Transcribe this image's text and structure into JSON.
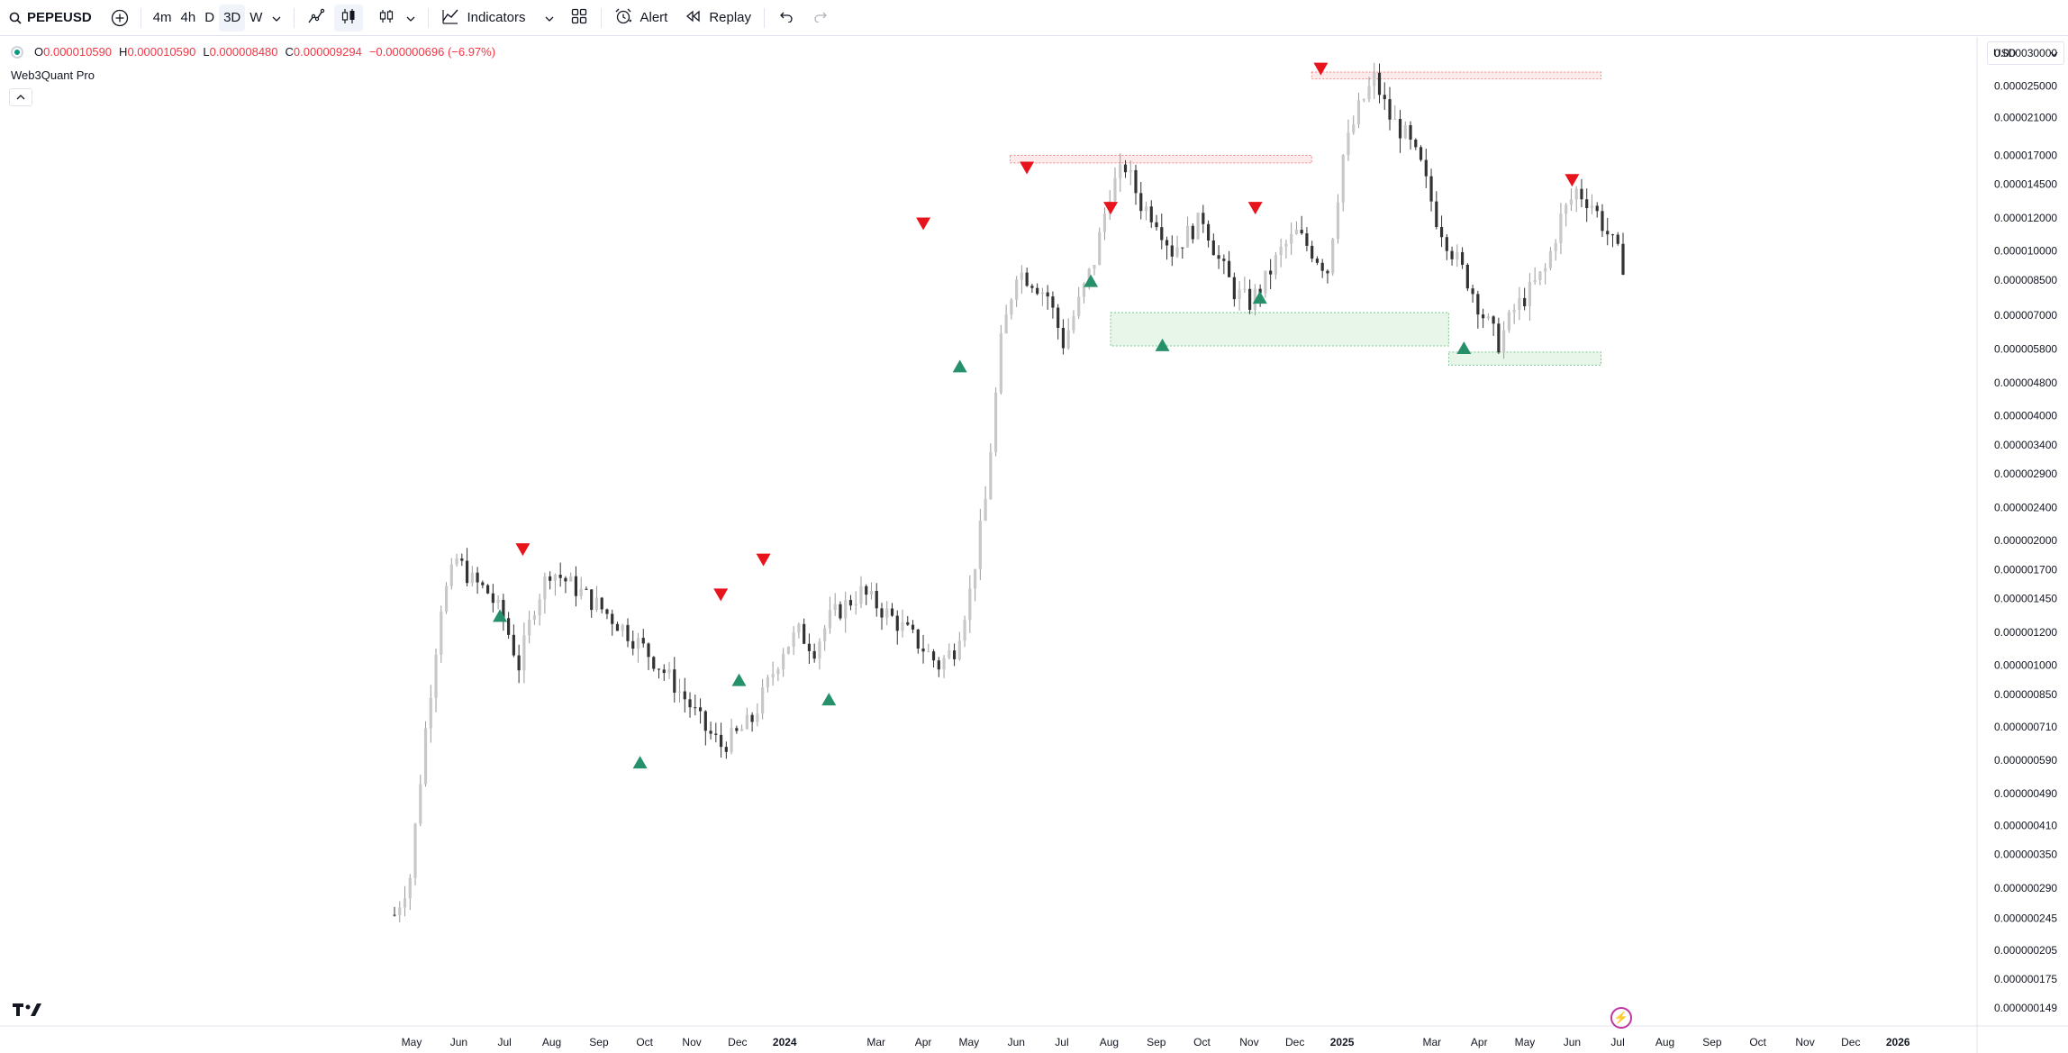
{
  "toolbar": {
    "symbol": "PEPEUSD",
    "intervals": [
      "4m",
      "4h",
      "D",
      "3D",
      "W"
    ],
    "active_interval": "3D",
    "indicators_label": "Indicators",
    "alert_label": "Alert",
    "replay_label": "Replay"
  },
  "legend": {
    "o_label": "O",
    "o_value": "0.000010590",
    "h_label": "H",
    "h_value": "0.000010590",
    "l_label": "L",
    "l_value": "0.000008480",
    "c_label": "C",
    "c_value": "0.000009294",
    "change": "−0.000000696 (−6.97%)",
    "indicator_name": "Web3Quant Pro"
  },
  "currency": "USD",
  "colors": {
    "bull_signal": "#26906b",
    "bear_signal": "#e8141c",
    "bull_zone": "#e8f6ea",
    "bear_zone": "#fdeaea",
    "candle": "#9a9a9a",
    "candle_dark": "#333333"
  },
  "chart_data": {
    "type": "candlestick",
    "price_scale": [
      "0.000030000",
      "0.000025000",
      "0.000021000",
      "0.000017000",
      "0.000014500",
      "0.000012000",
      "0.000010000",
      "0.000008500",
      "0.000007000",
      "0.000005800",
      "0.000004800",
      "0.000004000",
      "0.000003400",
      "0.000002900",
      "0.000002400",
      "0.000002000",
      "0.000001700",
      "0.000001450",
      "0.000001200",
      "0.000001000",
      "0.000000850",
      "0.000000710",
      "0.000000590",
      "0.000000490",
      "0.000000410",
      "0.000000350",
      "0.000000290",
      "0.000000245",
      "0.000000205",
      "0.000000175",
      "0.000000149"
    ],
    "time_scale": [
      "May",
      "Jun",
      "Jul",
      "Aug",
      "Sep",
      "Oct",
      "Nov",
      "Dec",
      "2024",
      "Mar",
      "Apr",
      "May",
      "Jun",
      "Jul",
      "Aug",
      "Sep",
      "Oct",
      "Nov",
      "Dec",
      "2025",
      "Mar",
      "Apr",
      "May",
      "Jun",
      "Jul",
      "Aug",
      "Sep",
      "Oct",
      "Nov",
      "Dec",
      "2026"
    ],
    "log_scale": true,
    "close_series": [
      2.5e-07,
      3.1e-07,
      7e-07,
      1.4e-06,
      1.8e-06,
      1.6e-06,
      1.5e-06,
      1.3e-06,
      1e-06,
      1.4e-06,
      1.7e-06,
      1.6e-06,
      1.5e-06,
      1.4e-06,
      1.3e-06,
      1.2e-06,
      1.1e-06,
      1e-06,
      9e-07,
      8e-07,
      7e-07,
      6.4e-07,
      6.8e-07,
      7.4e-07,
      9e-07,
      1.1e-06,
      1.2e-06,
      1.1e-06,
      1.3e-06,
      1.4e-06,
      1.5e-06,
      1.4e-06,
      1.3e-06,
      1.2e-06,
      1.1e-06,
      1e-06,
      1.1e-06,
      1.5e-06,
      2.5e-06,
      6e-06,
      9e-06,
      8.5e-06,
      7.8e-06,
      6e-06,
      7.5e-06,
      9.5e-06,
      1.4e-05,
      1.6e-05,
      1.3e-05,
      1.2e-05,
      1e-05,
      1.1e-05,
      1.2e-05,
      9.5e-06,
      8e-06,
      7.5e-06,
      8.5e-06,
      1e-05,
      1.1e-05,
      1e-05,
      9e-06,
      1.7e-05,
      2.2e-05,
      2.6e-05,
      2.1e-05,
      1.9e-05,
      1.6e-05,
      1.2e-05,
      1e-05,
      8.5e-06,
      7e-06,
      6e-06,
      7.2e-06,
      8e-06,
      9e-06,
      1.2e-05,
      1.4e-05,
      1.3e-05,
      1.1e-05,
      9.3e-06
    ],
    "bear_signals": [
      {
        "date": "2023-07-13",
        "price": 1.8e-06
      },
      {
        "date": "2023-11-20",
        "price": 1.4e-06
      },
      {
        "date": "2023-12-18",
        "price": 1.7e-06
      },
      {
        "date": "2024-04-01",
        "price": 1.1e-05
      },
      {
        "date": "2024-06-08",
        "price": 1.5e-05
      },
      {
        "date": "2024-08-02",
        "price": 1.2e-05
      },
      {
        "date": "2024-11-05",
        "price": 1.2e-05
      },
      {
        "date": "2024-12-18",
        "price": 2.6e-05
      },
      {
        "date": "2025-06-01",
        "price": 1.4e-05
      }
    ],
    "bull_signals": [
      {
        "date": "2023-06-28",
        "price": 1.4e-06
      },
      {
        "date": "2023-09-28",
        "price": 6.2e-07
      },
      {
        "date": "2023-12-02",
        "price": 9.8e-07
      },
      {
        "date": "2024-01-30",
        "price": 8.8e-07
      },
      {
        "date": "2024-04-25",
        "price": 5.6e-06
      },
      {
        "date": "2024-07-20",
        "price": 9e-06
      },
      {
        "date": "2024-09-05",
        "price": 6.3e-06
      },
      {
        "date": "2024-11-08",
        "price": 8.2e-06
      },
      {
        "date": "2025-03-22",
        "price": 6.2e-06
      }
    ],
    "zones": [
      {
        "kind": "bear",
        "from": "2024-05-28",
        "to": "2024-12-12",
        "top": 1.7e-05,
        "bottom": 1.63e-05
      },
      {
        "kind": "bear",
        "from": "2024-12-12",
        "to": "2025-06-20",
        "top": 2.7e-05,
        "bottom": 2.6e-05
      },
      {
        "kind": "bull",
        "from": "2024-08-02",
        "to": "2025-03-12",
        "top": 7.1e-06,
        "bottom": 5.9e-06
      },
      {
        "kind": "bull",
        "from": "2025-03-12",
        "to": "2025-06-20",
        "top": 5.7e-06,
        "bottom": 5.3e-06
      }
    ]
  }
}
